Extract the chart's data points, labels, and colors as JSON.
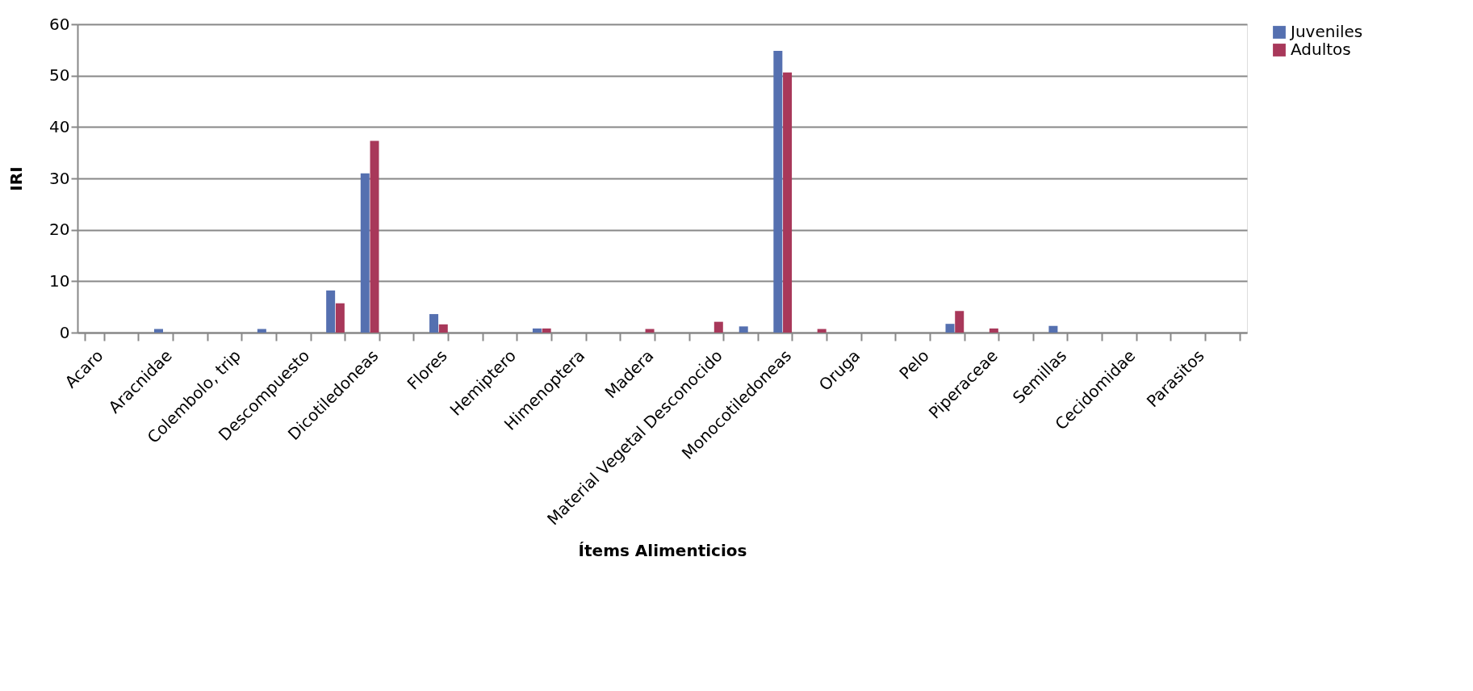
{
  "chart_data": {
    "type": "bar",
    "xlabel": "Ítems Alimenticios",
    "ylabel": "IRI",
    "categories": [
      "Acaro",
      null,
      "Aracnidae",
      null,
      "Colembolo, trip",
      null,
      "Descompuesto",
      null,
      "Dicotiledoneas",
      null,
      "Flores",
      null,
      "Hemiptero",
      null,
      "Himenoptera",
      null,
      "Madera",
      null,
      "Material Vegetal Desconocido",
      null,
      "Monocotiledoneas",
      null,
      "Oruga",
      null,
      "Pelo",
      null,
      "Piperaceae",
      null,
      "Semillas",
      null,
      "Cecidomidae",
      null,
      "Parasitos",
      null
    ],
    "series": [
      {
        "name": "Juveniles",
        "color": "#5570b0",
        "values": [
          0,
          0,
          0.7,
          0,
          0,
          0.7,
          0,
          8.2,
          31,
          0,
          3.6,
          0,
          0,
          0.8,
          0,
          0,
          0,
          0,
          0,
          1.2,
          54.8,
          0,
          0,
          0,
          0,
          1.7,
          0,
          0,
          1.3,
          0,
          0,
          0,
          0,
          0
        ]
      },
      {
        "name": "Adultos",
        "color": "#a8385a",
        "values": [
          0,
          0,
          0,
          0,
          0,
          0,
          0,
          5.7,
          37.3,
          0,
          1.6,
          0,
          0,
          0.8,
          0,
          0,
          0.7,
          0,
          2.1,
          0,
          50.6,
          0.7,
          0,
          0,
          0,
          4.2,
          0.8,
          0,
          0,
          0,
          0,
          0,
          0,
          0
        ]
      }
    ],
    "ylim": [
      0,
      60
    ],
    "yticks": [
      0,
      10,
      20,
      30,
      40,
      50,
      60
    ],
    "grid": "y",
    "legend": "right"
  }
}
